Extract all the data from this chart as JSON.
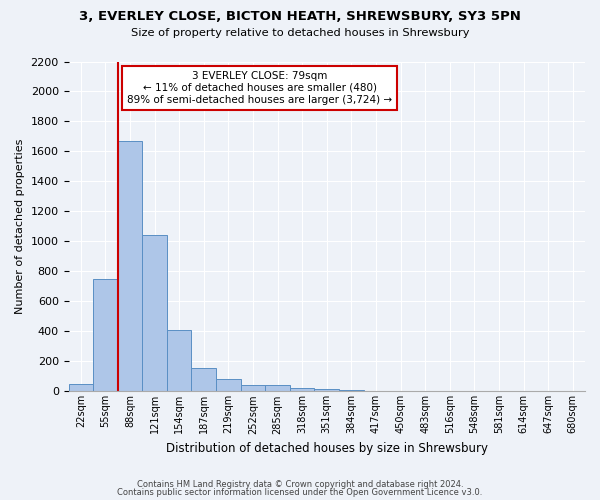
{
  "title1": "3, EVERLEY CLOSE, BICTON HEATH, SHREWSBURY, SY3 5PN",
  "title2": "Size of property relative to detached houses in Shrewsbury",
  "xlabel": "Distribution of detached houses by size in Shrewsbury",
  "ylabel": "Number of detached properties",
  "bin_labels": [
    "22sqm",
    "55sqm",
    "88sqm",
    "121sqm",
    "154sqm",
    "187sqm",
    "219sqm",
    "252sqm",
    "285sqm",
    "318sqm",
    "351sqm",
    "384sqm",
    "417sqm",
    "450sqm",
    "483sqm",
    "516sqm",
    "548sqm",
    "581sqm",
    "614sqm",
    "647sqm",
    "680sqm"
  ],
  "bar_values": [
    50,
    750,
    1670,
    1040,
    410,
    155,
    80,
    45,
    40,
    25,
    15,
    10,
    5,
    0,
    0,
    0,
    0,
    0,
    0,
    0,
    0
  ],
  "bar_color": "#aec6e8",
  "bar_edge_color": "#5a8fc4",
  "vline_x_index": 2,
  "vline_color": "#cc0000",
  "annotation_title": "3 EVERLEY CLOSE: 79sqm",
  "annotation_line1": "← 11% of detached houses are smaller (480)",
  "annotation_line2": "89% of semi-detached houses are larger (3,724) →",
  "annotation_box_color": "#ffffff",
  "annotation_box_edge": "#cc0000",
  "ylim": [
    0,
    2200
  ],
  "yticks": [
    0,
    200,
    400,
    600,
    800,
    1000,
    1200,
    1400,
    1600,
    1800,
    2000,
    2200
  ],
  "footer1": "Contains HM Land Registry data © Crown copyright and database right 2024.",
  "footer2": "Contains public sector information licensed under the Open Government Licence v3.0.",
  "bg_color": "#eef2f8",
  "plot_bg_color": "#eef2f8"
}
